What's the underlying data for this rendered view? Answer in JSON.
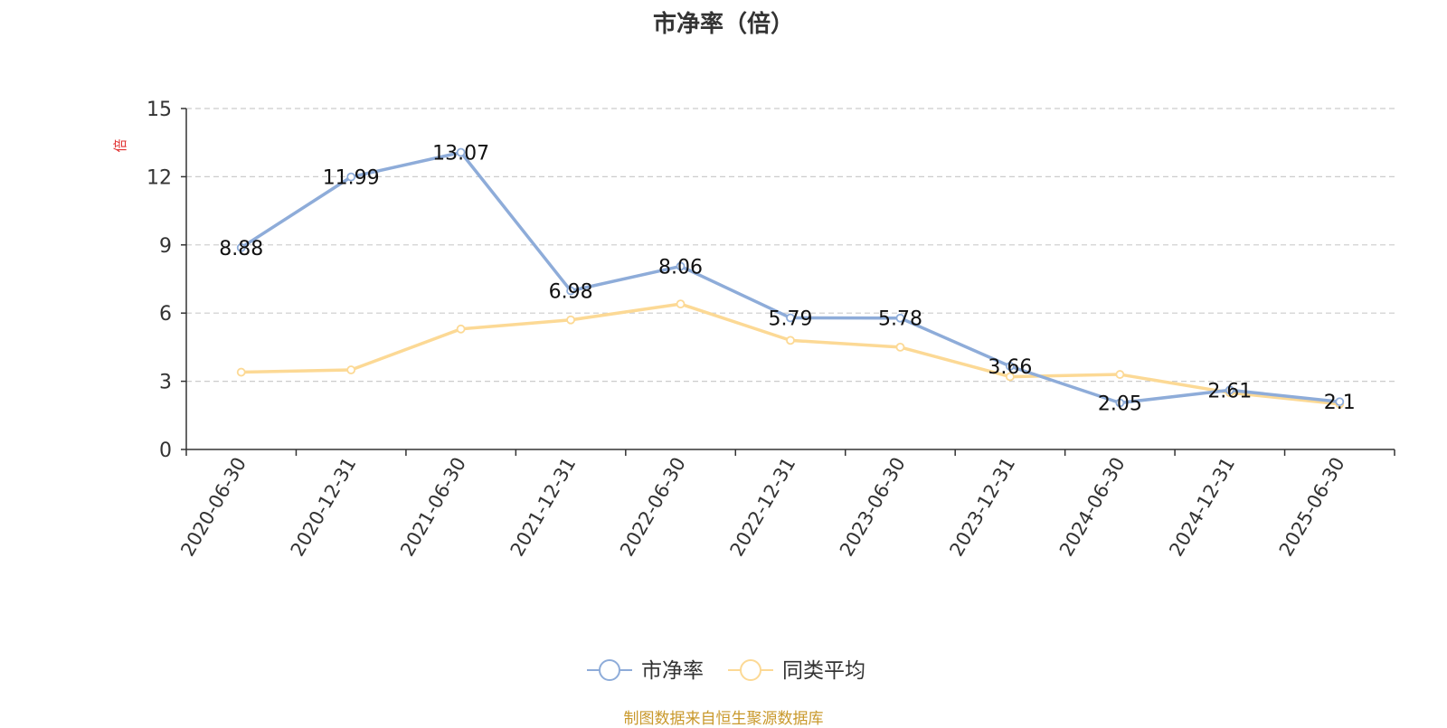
{
  "title": "市净率（倍）",
  "y_unit_label": "倍",
  "source_note": "制图数据来自恒生聚源数据库",
  "colors": {
    "series1": "#8eacd9",
    "series2": "#fcd995",
    "axis": "#333333",
    "grid": "#cccccc",
    "unit_label": "#e03030",
    "source": "#c9992c"
  },
  "chart_data": {
    "type": "line",
    "title": "市净率（倍）",
    "xlabel": "",
    "ylabel": "倍",
    "ylim": [
      0,
      15
    ],
    "yticks": [
      0,
      3,
      6,
      9,
      12,
      15
    ],
    "grid": true,
    "legend_position": "bottom-center",
    "categories": [
      "2020-06-30",
      "2020-12-31",
      "2021-06-30",
      "2021-12-31",
      "2022-06-30",
      "2022-12-31",
      "2023-06-30",
      "2023-12-31",
      "2024-06-30",
      "2024-12-31",
      "2025-06-30"
    ],
    "series": [
      {
        "name": "市净率",
        "values": [
          8.88,
          11.99,
          13.07,
          6.98,
          8.06,
          5.79,
          5.78,
          3.66,
          2.05,
          2.61,
          2.1
        ],
        "labels": [
          "8.88",
          "11.99",
          "13.07",
          "6.98",
          "8.06",
          "5.79",
          "5.78",
          "3.66",
          "2.05",
          "2.61",
          "2.1"
        ],
        "show_labels": true
      },
      {
        "name": "同类平均",
        "values": [
          3.4,
          3.5,
          5.3,
          5.7,
          6.4,
          4.8,
          4.5,
          3.2,
          3.3,
          2.5,
          2.0
        ],
        "show_labels": false
      }
    ]
  }
}
